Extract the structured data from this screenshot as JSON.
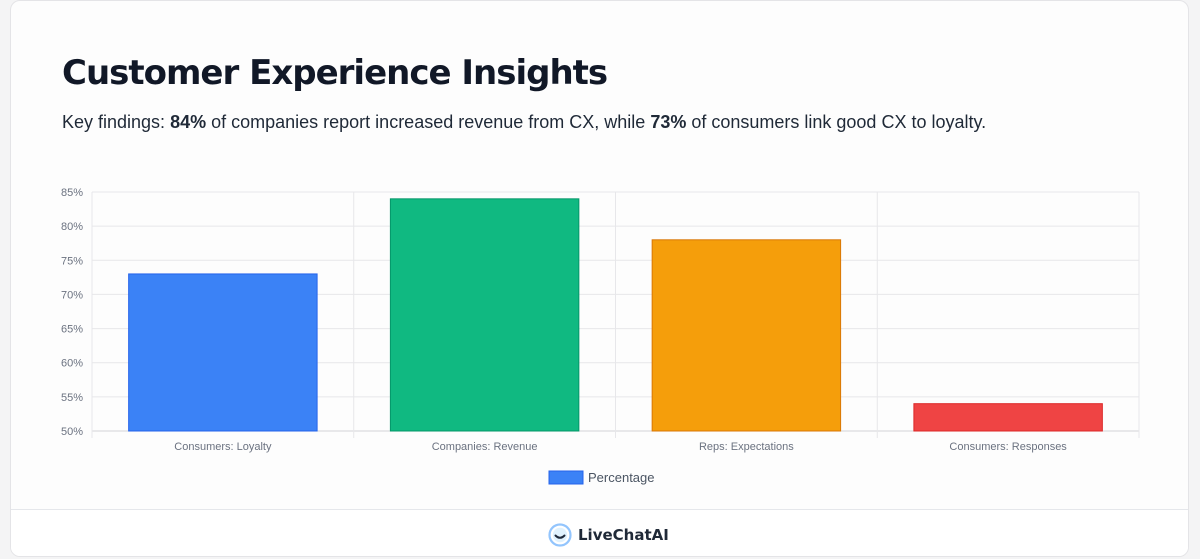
{
  "header": {
    "title": "Customer Experience Insights",
    "subtitle_prefix": "Key findings: ",
    "subtitle_stat1": "84%",
    "subtitle_mid": " of companies report increased revenue from CX, while ",
    "subtitle_stat2": "73%",
    "subtitle_suffix": " of consumers link good CX to loyalty."
  },
  "chart_data": {
    "type": "bar",
    "categories": [
      "Consumers: Loyalty",
      "Companies: Revenue",
      "Reps: Expectations",
      "Consumers: Responses"
    ],
    "series": [
      {
        "name": "Percentage",
        "values": [
          73,
          84,
          78,
          54
        ]
      }
    ],
    "colors": [
      "#3b82f6",
      "#10b981",
      "#f59e0b",
      "#ef4444"
    ],
    "border_colors": [
      "#2563eb",
      "#059669",
      "#d97706",
      "#dc2626"
    ],
    "ylim": [
      50,
      85
    ],
    "yticks": [
      "50%",
      "55%",
      "60%",
      "65%",
      "70%",
      "75%",
      "80%",
      "85%"
    ],
    "grid": true,
    "legend_position": "bottom"
  },
  "footer": {
    "brand": "LiveChatAI",
    "logo_icon": "livechatai-logo-icon"
  }
}
